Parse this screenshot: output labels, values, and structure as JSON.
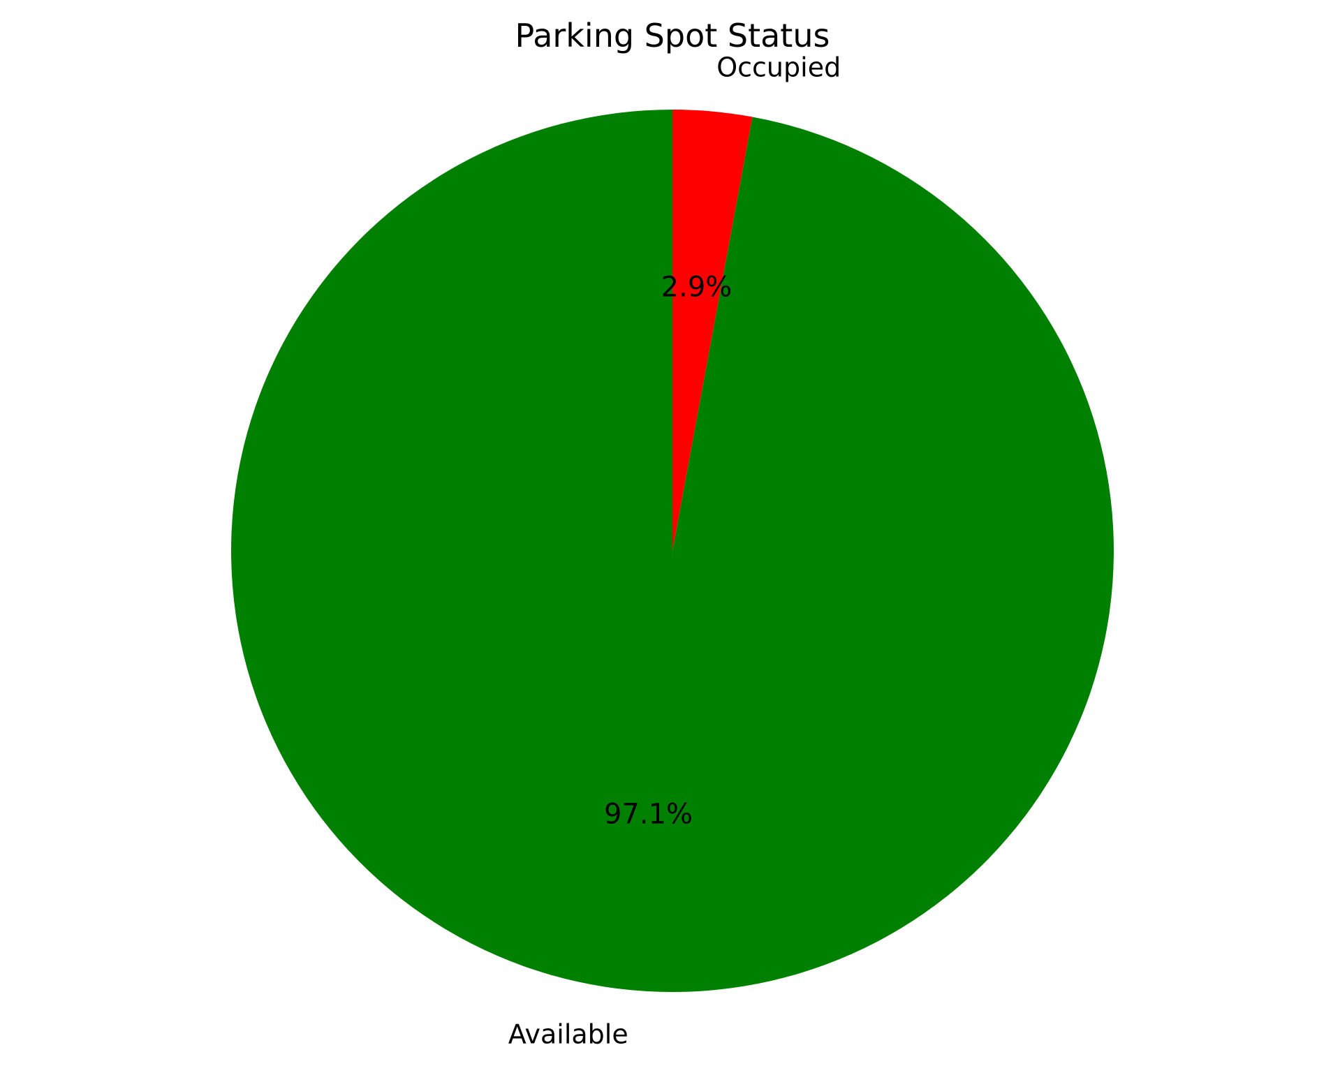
{
  "chart_data": {
    "type": "pie",
    "title": "Parking Spot Status",
    "start_angle_deg": 90,
    "direction": "clockwise",
    "slices": [
      {
        "label": "Occupied",
        "value": 2.9,
        "pct_label": "2.9%",
        "color": "#ff0000"
      },
      {
        "label": "Available",
        "value": 97.1,
        "pct_label": "97.1%",
        "color": "#008000"
      }
    ]
  }
}
